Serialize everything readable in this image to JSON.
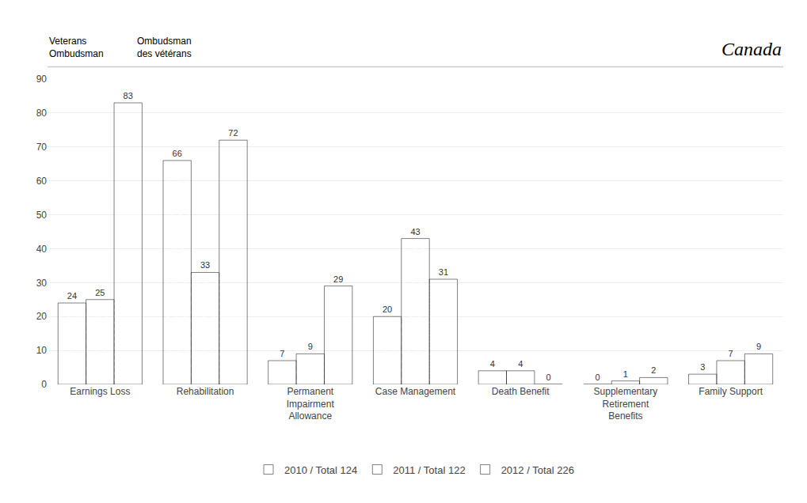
{
  "chart_data": {
    "type": "bar",
    "annotations": [
      "Veterans\nOmbudsman",
      "Ombudsman\ndes vétérans",
      "Canada"
    ],
    "categories": [
      "Earnings Loss",
      "Rehabilitation",
      "Permanent\nImpairment\nAllowance",
      "Case Management",
      "Death Benefit",
      "Supplementary\nRetirement\nBenefits",
      "Family Support"
    ],
    "series": [
      {
        "name": "2010 / Total 124",
        "color": "#4472C4",
        "values": [
          24,
          66,
          7,
          20,
          4,
          0,
          3
        ]
      },
      {
        "name": "2011 / Total 122",
        "color": "#8B1A1A",
        "values": [
          25,
          33,
          9,
          43,
          4,
          1,
          7
        ]
      },
      {
        "name": "2012 / Total 226",
        "color": "#6B8E23",
        "values": [
          83,
          72,
          29,
          31,
          0,
          2,
          9
        ]
      }
    ],
    "ylim": [
      0,
      90
    ],
    "yticks": [
      0,
      10,
      20,
      30,
      40,
      50,
      60,
      70,
      80,
      90
    ],
    "grid": true,
    "data_labels": true,
    "legend": "bottom"
  }
}
